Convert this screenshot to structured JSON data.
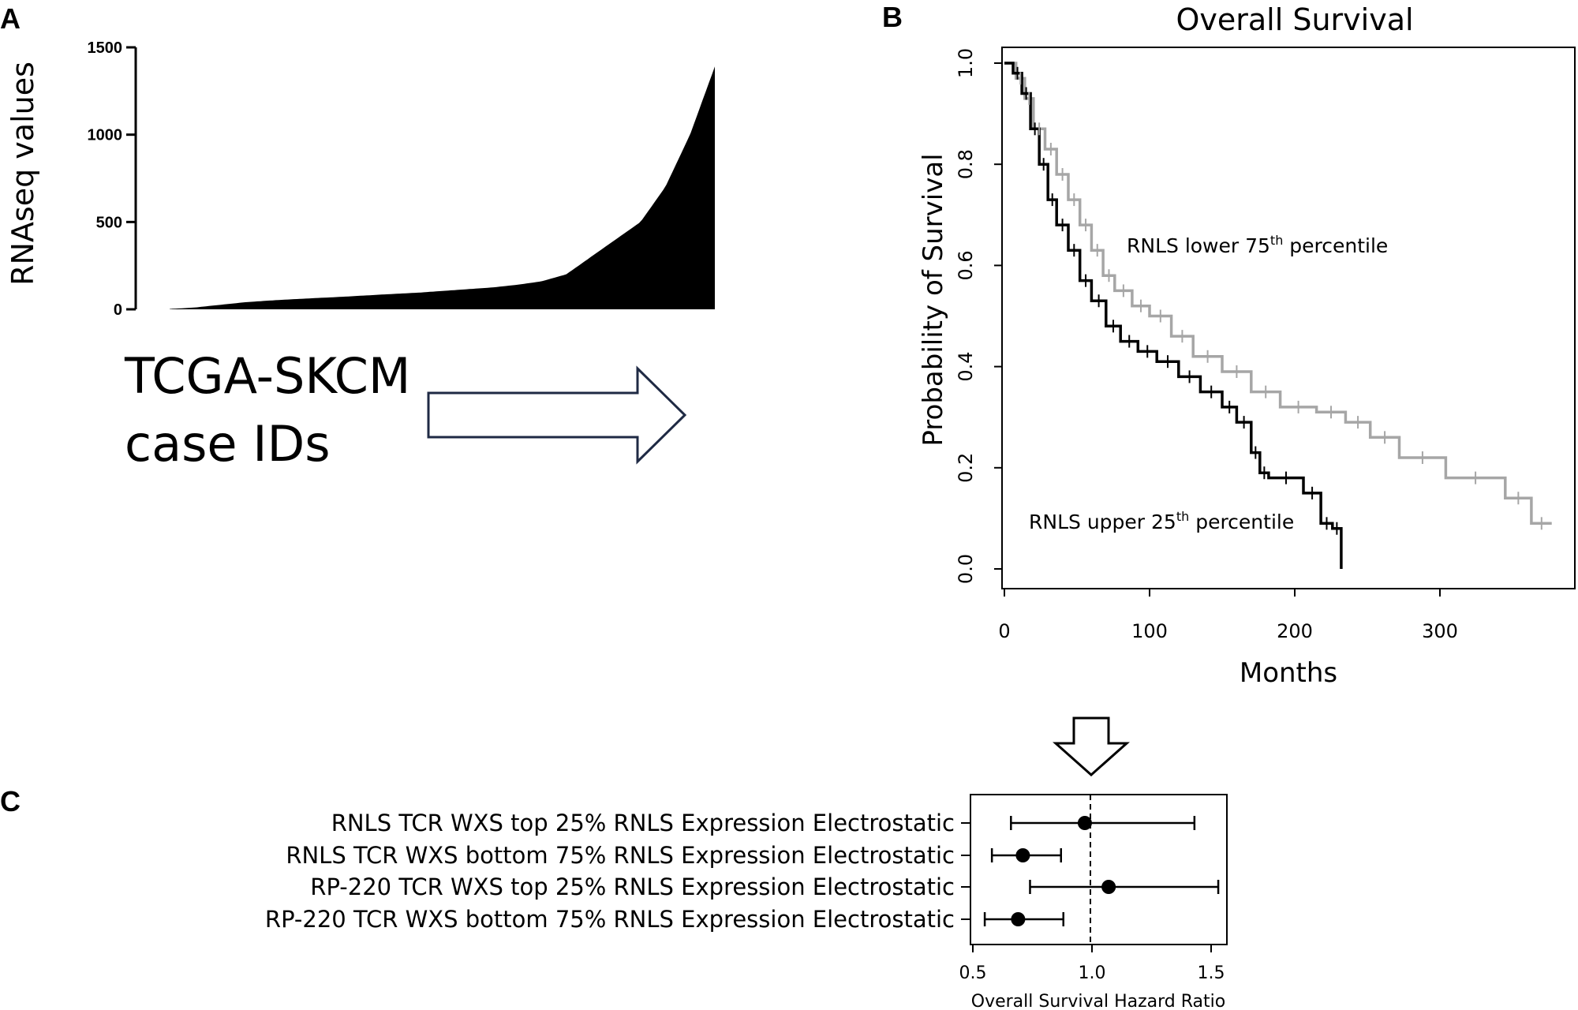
{
  "panels": {
    "a": "A",
    "b": "B",
    "c": "C"
  },
  "panel_a": {
    "ylabel": "RNAseq values",
    "yticks": [
      "0",
      "500",
      "1000",
      "1500"
    ],
    "text_line1": "TCGA-SKCM",
    "text_line2": "case IDs"
  },
  "panel_b": {
    "title": "Overall Survival",
    "xlabel": "Months",
    "ylabel": "Probability of Survival",
    "xticks": [
      "0",
      "100",
      "200",
      "300"
    ],
    "yticks": [
      "0.0",
      "0.2",
      "0.4",
      "0.6",
      "0.8",
      "1.0"
    ],
    "lower_label_pre": "RNLS lower 75",
    "lower_label_sup": "th",
    "lower_label_post": " percentile",
    "upper_label_pre": "RNLS upper 25",
    "upper_label_sup": "th",
    "upper_label_post": " percentile"
  },
  "panel_c": {
    "rows": [
      "RNLS TCR WXS top 25% RNLS Expression Electrostatic",
      "RNLS TCR WXS bottom 75% RNLS Expression Electrostatic",
      "RP-220 TCR WXS top 25% RNLS Expression Electrostatic",
      "RP-220 TCR WXS bottom 75% RNLS Expression Electrostatic"
    ],
    "xticks": [
      "0.5",
      "1.0",
      "1.5"
    ],
    "xlabel": "Overall Survival Hazard Ratio"
  },
  "colors": {
    "ink": "#000000",
    "lower_group": "#a6a6a6",
    "arrow_stroke": "#1f2a44"
  },
  "chart_data": [
    {
      "type": "bar",
      "ylabel": "RNAseq values",
      "xlabel": "TCGA-SKCM case IDs",
      "ylim": [
        0,
        1500
      ],
      "sorted_values_sample": [
        2,
        10,
        25,
        40,
        50,
        58,
        65,
        72,
        80,
        88,
        95,
        105,
        115,
        125,
        140,
        160,
        200,
        300,
        400,
        500,
        700,
        1000,
        1390
      ]
    },
    {
      "type": "line",
      "title": "Overall Survival",
      "xlabel": "Months",
      "ylabel": "Probability of Survival",
      "xlim": [
        0,
        380
      ],
      "ylim": [
        0,
        1.0
      ],
      "series": [
        {
          "name": "RNLS lower 75th percentile",
          "x": [
            0,
            8,
            14,
            20,
            28,
            36,
            44,
            52,
            60,
            68,
            76,
            88,
            100,
            115,
            130,
            150,
            170,
            190,
            215,
            235,
            252,
            272,
            304,
            345,
            363,
            377
          ],
          "y": [
            1.0,
            0.97,
            0.93,
            0.87,
            0.83,
            0.78,
            0.73,
            0.68,
            0.63,
            0.58,
            0.55,
            0.52,
            0.5,
            0.46,
            0.42,
            0.39,
            0.35,
            0.32,
            0.31,
            0.29,
            0.26,
            0.22,
            0.18,
            0.14,
            0.09,
            0.09
          ]
        },
        {
          "name": "RNLS upper 25th percentile",
          "x": [
            0,
            6,
            12,
            18,
            24,
            30,
            36,
            44,
            52,
            60,
            70,
            80,
            92,
            105,
            120,
            135,
            150,
            160,
            170,
            176,
            182,
            206,
            218,
            226,
            232
          ],
          "y": [
            1.0,
            0.98,
            0.94,
            0.87,
            0.8,
            0.73,
            0.68,
            0.63,
            0.57,
            0.53,
            0.48,
            0.45,
            0.43,
            0.41,
            0.38,
            0.35,
            0.32,
            0.29,
            0.23,
            0.19,
            0.18,
            0.15,
            0.09,
            0.08,
            0.0
          ]
        }
      ]
    },
    {
      "type": "scatter",
      "xlabel": "Overall Survival Hazard Ratio",
      "xlim": [
        0.5,
        1.6
      ],
      "reference_line": 1.0,
      "categories": [
        "RNLS TCR WXS top 25% RNLS Expression Electrostatic",
        "RNLS TCR WXS bottom 75% RNLS Expression Electrostatic",
        "RP-220 TCR WXS top 25% RNLS Expression Electrostatic",
        "RP-220 TCR WXS bottom 75% RNLS Expression Electrostatic"
      ],
      "estimate": [
        0.97,
        0.71,
        1.07,
        0.69
      ],
      "ci_low": [
        0.66,
        0.58,
        0.74,
        0.55
      ],
      "ci_high": [
        1.43,
        0.87,
        1.53,
        0.88
      ]
    }
  ]
}
